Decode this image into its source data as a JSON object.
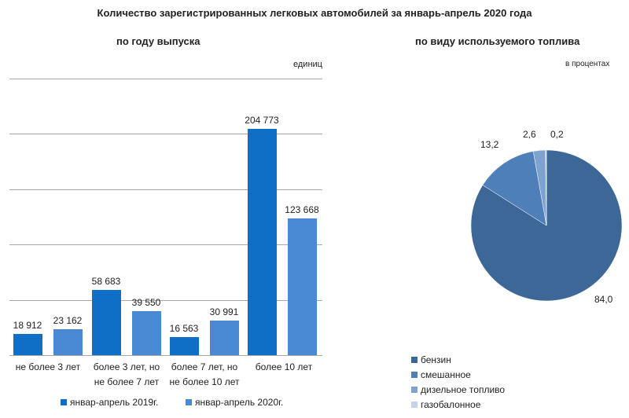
{
  "title": "Количество зарегистрированных легковых автомобилей за январь-апрель 2020 года",
  "bar_panel": {
    "subtitle": "по году выпуска",
    "unit": "единиц",
    "categories": [
      "не более 3 лет",
      "более 3 лет, но не более 7 лет",
      "более 7 лет, но не более 10 лет",
      "более 10 лет"
    ],
    "cat_lines": [
      [
        "не более 3 лет",
        ""
      ],
      [
        "более 3 лет, но",
        "не более 7 лет"
      ],
      [
        "более 7 лет, но",
        "не более 10 лет"
      ],
      [
        "более 10 лет",
        ""
      ]
    ],
    "series": [
      {
        "name": "январ-апрель 2019г.",
        "color": "#0f6fc6",
        "values": [
          18912,
          58683,
          16563,
          204773
        ],
        "labels": [
          "18 912",
          "58 683",
          "16 563",
          "204 773"
        ]
      },
      {
        "name": "январ-апрель 2020г.",
        "color": "#4a8ad4",
        "values": [
          23162,
          39550,
          30991,
          123668
        ],
        "labels": [
          "23 162",
          "39 550",
          "30 991",
          "123 668"
        ]
      }
    ]
  },
  "pie_panel": {
    "subtitle": "по виду используемого топлива",
    "unit": "в процентах",
    "slices": [
      {
        "name": "бензин",
        "value": 84.0,
        "label": "84,0",
        "color": "#3d6797"
      },
      {
        "name": "смешанное",
        "value": 13.2,
        "label": "13,2",
        "color": "#4f7fb8"
      },
      {
        "name": "дизельное топливо",
        "value": 2.6,
        "label": "2,6",
        "color": "#7fa3d1"
      },
      {
        "name": "газобалонное",
        "value": 0.2,
        "label": "0,2",
        "color": "#c5d4e8"
      }
    ]
  },
  "chart_data": [
    {
      "type": "bar",
      "title": "по году выпуска",
      "ylabel": "единиц",
      "xlabel": "",
      "categories": [
        "не более 3 лет",
        "более 3 лет, но не более 7 лет",
        "более 7 лет, но не более 10 лет",
        "более 10 лет"
      ],
      "series": [
        {
          "name": "январ-апрель 2019г.",
          "values": [
            18912,
            58683,
            16563,
            204773
          ]
        },
        {
          "name": "январ-апрель 2020г.",
          "values": [
            23162,
            39550,
            30991,
            123668
          ]
        }
      ],
      "ylim": [
        0,
        250000
      ],
      "grid": true,
      "legend_position": "bottom"
    },
    {
      "type": "pie",
      "title": "по виду используемого топлива",
      "unit": "в процентах",
      "categories": [
        "бензин",
        "смешанное",
        "дизельное топливо",
        "газобалонное"
      ],
      "values": [
        84.0,
        13.2,
        2.6,
        0.2
      ],
      "legend_position": "bottom"
    }
  ]
}
